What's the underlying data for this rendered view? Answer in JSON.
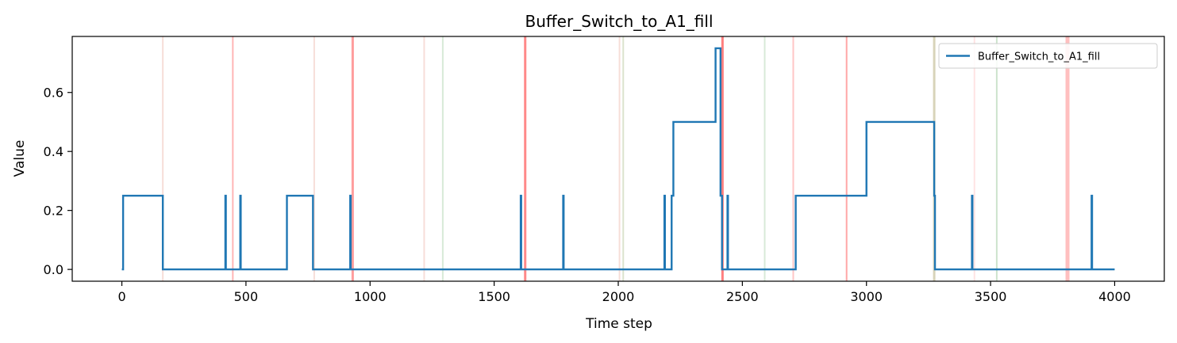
{
  "chart_data": {
    "type": "line",
    "title": "Buffer_Switch_to_A1_fill",
    "xlabel": "Time step",
    "ylabel": "Value",
    "xlim": [
      -200,
      4200
    ],
    "ylim": [
      -0.04,
      0.79
    ],
    "xticks": [
      0,
      500,
      1000,
      1500,
      2000,
      2500,
      3000,
      3500,
      4000
    ],
    "yticks": [
      0.0,
      0.2,
      0.4,
      0.6
    ],
    "grid": false,
    "legend": {
      "placement": "top-right",
      "entries": [
        "Buffer_Switch_to_A1_fill"
      ]
    },
    "series": [
      {
        "name": "Buffer_Switch_to_A1_fill",
        "color": "#1f77b4",
        "step": true,
        "points": [
          [
            0,
            0.0
          ],
          [
            5,
            0.0
          ],
          [
            5,
            0.25
          ],
          [
            165,
            0.25
          ],
          [
            165,
            0.0
          ],
          [
            417,
            0.0
          ],
          [
            417,
            0.25
          ],
          [
            419,
            0.25
          ],
          [
            419,
            0.0
          ],
          [
            477,
            0.0
          ],
          [
            477,
            0.25
          ],
          [
            479,
            0.25
          ],
          [
            479,
            0.0
          ],
          [
            665,
            0.0
          ],
          [
            665,
            0.25
          ],
          [
            770,
            0.25
          ],
          [
            770,
            0.0
          ],
          [
            920,
            0.0
          ],
          [
            920,
            0.25
          ],
          [
            922,
            0.25
          ],
          [
            922,
            0.0
          ],
          [
            1607,
            0.0
          ],
          [
            1607,
            0.25
          ],
          [
            1609,
            0.25
          ],
          [
            1609,
            0.0
          ],
          [
            1778,
            0.0
          ],
          [
            1778,
            0.25
          ],
          [
            1780,
            0.25
          ],
          [
            1780,
            0.0
          ],
          [
            2186,
            0.0
          ],
          [
            2186,
            0.25
          ],
          [
            2188,
            0.25
          ],
          [
            2188,
            0.0
          ],
          [
            2215,
            0.0
          ],
          [
            2215,
            0.25
          ],
          [
            2222,
            0.25
          ],
          [
            2222,
            0.5
          ],
          [
            2392,
            0.5
          ],
          [
            2392,
            0.75
          ],
          [
            2412,
            0.75
          ],
          [
            2412,
            0.25
          ],
          [
            2418,
            0.25
          ],
          [
            2418,
            0.0
          ],
          [
            2440,
            0.0
          ],
          [
            2440,
            0.25
          ],
          [
            2442,
            0.25
          ],
          [
            2442,
            0.0
          ],
          [
            2715,
            0.0
          ],
          [
            2715,
            0.25
          ],
          [
            3000,
            0.25
          ],
          [
            3000,
            0.5
          ],
          [
            3273,
            0.5
          ],
          [
            3273,
            0.25
          ],
          [
            3276,
            0.25
          ],
          [
            3276,
            0.0
          ],
          [
            3425,
            0.0
          ],
          [
            3425,
            0.25
          ],
          [
            3427,
            0.25
          ],
          [
            3427,
            0.0
          ],
          [
            3907,
            0.0
          ],
          [
            3907,
            0.25
          ],
          [
            3909,
            0.25
          ],
          [
            3909,
            0.0
          ],
          [
            4000,
            0.0
          ]
        ]
      }
    ],
    "vertical_bands": [
      {
        "x": 165,
        "color": "#e8a090",
        "opacity": 0.35,
        "width": 2
      },
      {
        "x": 447,
        "color": "#ff6b6b",
        "opacity": 0.5,
        "width": 2
      },
      {
        "x": 775,
        "color": "#e8a090",
        "opacity": 0.35,
        "width": 2
      },
      {
        "x": 930,
        "color": "#ff4d4d",
        "opacity": 0.55,
        "width": 3
      },
      {
        "x": 1218,
        "color": "#e8a090",
        "opacity": 0.35,
        "width": 2
      },
      {
        "x": 1293,
        "color": "#90c490",
        "opacity": 0.35,
        "width": 2
      },
      {
        "x": 1625,
        "color": "#ff3b3b",
        "opacity": 0.6,
        "width": 3
      },
      {
        "x": 2005,
        "color": "#e8a090",
        "opacity": 0.35,
        "width": 2
      },
      {
        "x": 2020,
        "color": "#b0c090",
        "opacity": 0.45,
        "width": 2
      },
      {
        "x": 2420,
        "color": "#ff3b3b",
        "opacity": 0.65,
        "width": 3
      },
      {
        "x": 2590,
        "color": "#90c490",
        "opacity": 0.35,
        "width": 2
      },
      {
        "x": 2705,
        "color": "#ff8080",
        "opacity": 0.45,
        "width": 2
      },
      {
        "x": 2920,
        "color": "#ff5c5c",
        "opacity": 0.55,
        "width": 2
      },
      {
        "x": 3273,
        "color": "#b8b080",
        "opacity": 0.55,
        "width": 3
      },
      {
        "x": 3435,
        "color": "#ffb0b0",
        "opacity": 0.35,
        "width": 2
      },
      {
        "x": 3525,
        "color": "#90c490",
        "opacity": 0.45,
        "width": 2
      },
      {
        "x": 3810,
        "color": "#ff7070",
        "opacity": 0.45,
        "width": 5
      }
    ]
  }
}
